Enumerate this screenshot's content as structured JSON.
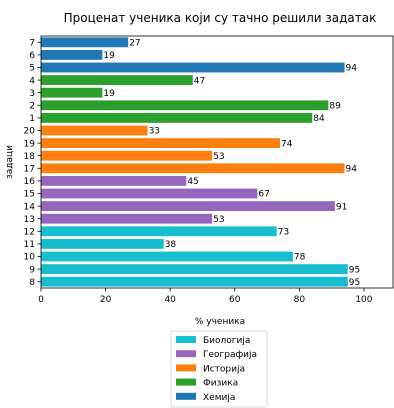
{
  "chart_data": {
    "type": "bar",
    "orientation": "horizontal",
    "title": "Проценат ученика који су тачно решили задатак",
    "xlabel": "% ученика",
    "ylabel": "задаци",
    "xlim": [
      0,
      109
    ],
    "xticks": [
      0,
      20,
      40,
      60,
      80,
      100
    ],
    "grid": false,
    "legend_position": "bottom",
    "categories": [
      "7",
      "6",
      "5",
      "4",
      "3",
      "2",
      "1",
      "20",
      "19",
      "18",
      "17",
      "16",
      "15",
      "14",
      "13",
      "12",
      "11",
      "10",
      "9",
      "8"
    ],
    "values": [
      27,
      19,
      94,
      47,
      19,
      89,
      84,
      33,
      74,
      53,
      94,
      45,
      67,
      91,
      53,
      73,
      38,
      78,
      95,
      95
    ],
    "category_series": [
      "Хемија",
      "Хемија",
      "Хемија",
      "Физика",
      "Физика",
      "Физика",
      "Физика",
      "Историја",
      "Историја",
      "Историја",
      "Историја",
      "Географија",
      "Географија",
      "Географија",
      "Географија",
      "Биологија",
      "Биологија",
      "Биологија",
      "Биологија",
      "Биологија"
    ],
    "series": [
      {
        "name": "Биологија",
        "color": "#17becf"
      },
      {
        "name": "Географија",
        "color": "#9467bd"
      },
      {
        "name": "Историја",
        "color": "#ff7f0e"
      },
      {
        "name": "Физика",
        "color": "#2ca02c"
      },
      {
        "name": "Хемија",
        "color": "#1f77b4"
      }
    ]
  }
}
